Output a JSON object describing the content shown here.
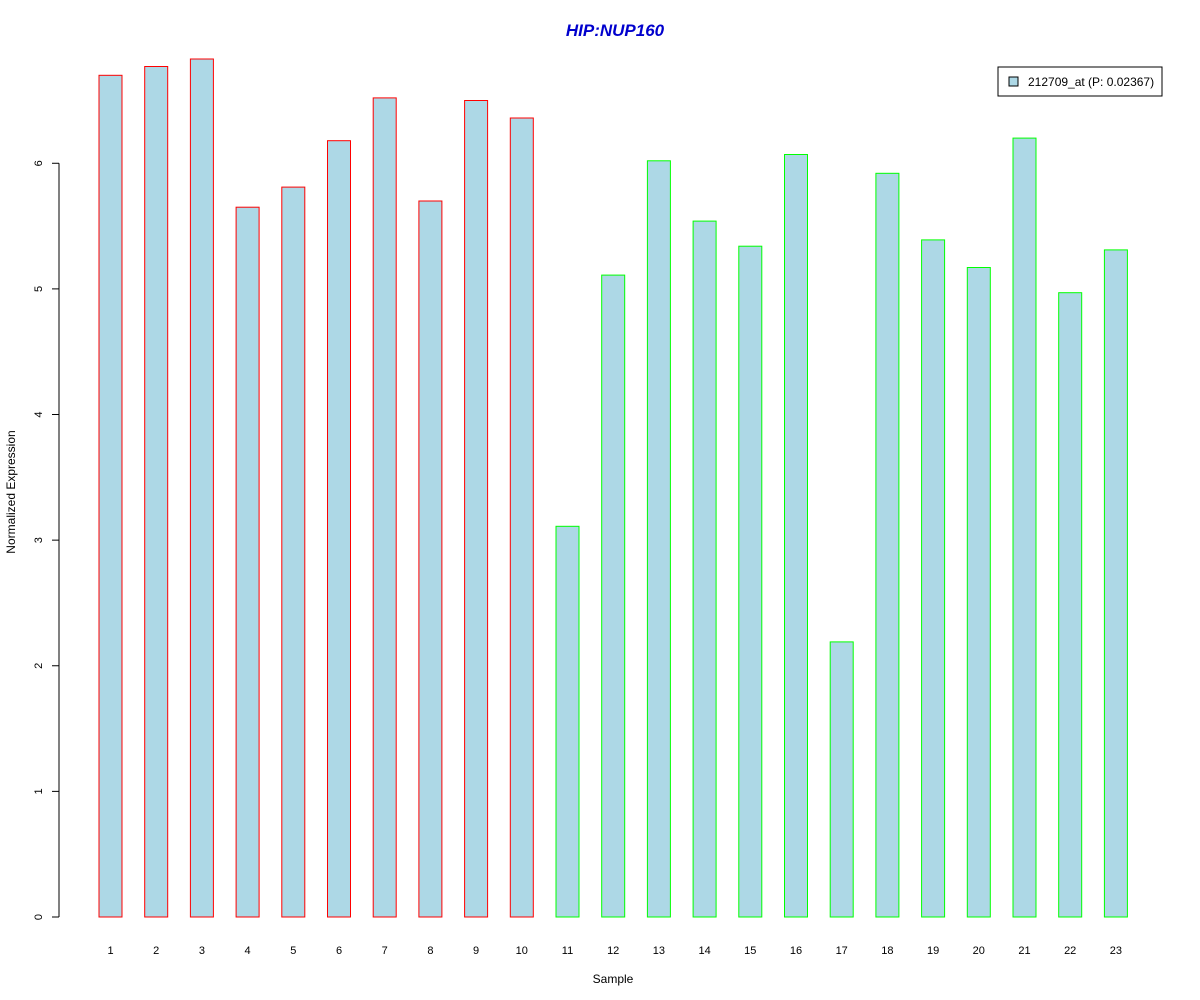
{
  "chart_data": {
    "type": "bar",
    "title": "HIP:NUP160",
    "xlabel": "Sample",
    "ylabel": "Normalized Expression",
    "categories": [
      "1",
      "2",
      "3",
      "4",
      "5",
      "6",
      "7",
      "8",
      "9",
      "10",
      "11",
      "12",
      "13",
      "14",
      "15",
      "16",
      "17",
      "18",
      "19",
      "20",
      "21",
      "22",
      "23"
    ],
    "series": [
      {
        "name": "212709_at (P: 0.02367)",
        "values": [
          6.7,
          6.77,
          6.83,
          5.65,
          5.81,
          6.18,
          6.52,
          5.7,
          6.5,
          6.36,
          3.11,
          5.11,
          6.02,
          5.54,
          5.34,
          6.07,
          2.19,
          5.92,
          5.39,
          5.17,
          6.2,
          4.97,
          5.31
        ]
      }
    ],
    "groups": [
      1,
      1,
      1,
      1,
      1,
      1,
      1,
      1,
      1,
      1,
      2,
      2,
      2,
      2,
      2,
      2,
      2,
      2,
      2,
      2,
      2,
      2,
      2
    ],
    "yticks": [
      0,
      1,
      2,
      3,
      4,
      5,
      6
    ],
    "ylim": [
      0,
      6.83
    ],
    "grid": false,
    "legend_position": "top-right",
    "colors": {
      "bar_fill": "#add8e6",
      "group1_border": "#ff0000",
      "group2_border": "#00ff00",
      "title": "#0000cd",
      "axis": "#000000"
    }
  }
}
